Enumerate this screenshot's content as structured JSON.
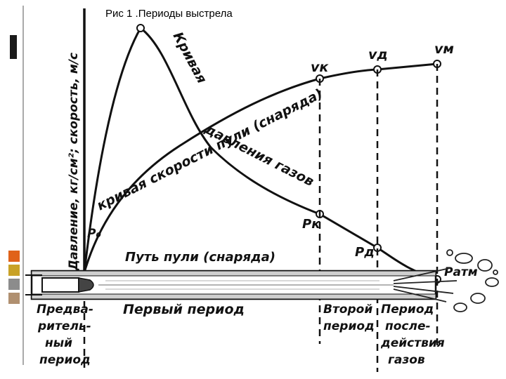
{
  "caption": "Рис 1 .Периоды выстрела",
  "axis_label": "Давление, кг/см²; скорость, м/с",
  "curves": {
    "pressure_label_1": "Кривая",
    "pressure_label_2": "давления газов",
    "velocity_label": "кривая скорости пули (снаряда)"
  },
  "points": {
    "p0": "P₀",
    "pk": "Pк",
    "pd": "Pд",
    "patm": "Pатм",
    "vk": "vк",
    "vd": "vд",
    "vm": "vм"
  },
  "path_label": "Путь пули (снаряда)",
  "periods": {
    "prelim": [
      "Предва-",
      "ритель-",
      "ный",
      "период"
    ],
    "first": "Первый период",
    "second": [
      "Второй",
      "период"
    ],
    "after": [
      "Период",
      "после-",
      "действия",
      "газов"
    ]
  },
  "colors": {
    "deco_dark": "#1a1a1a",
    "deco_orange": "#e0621a",
    "deco_gold": "#c9a227",
    "deco_gray": "#8c8c8c",
    "deco_tan": "#b09070"
  }
}
